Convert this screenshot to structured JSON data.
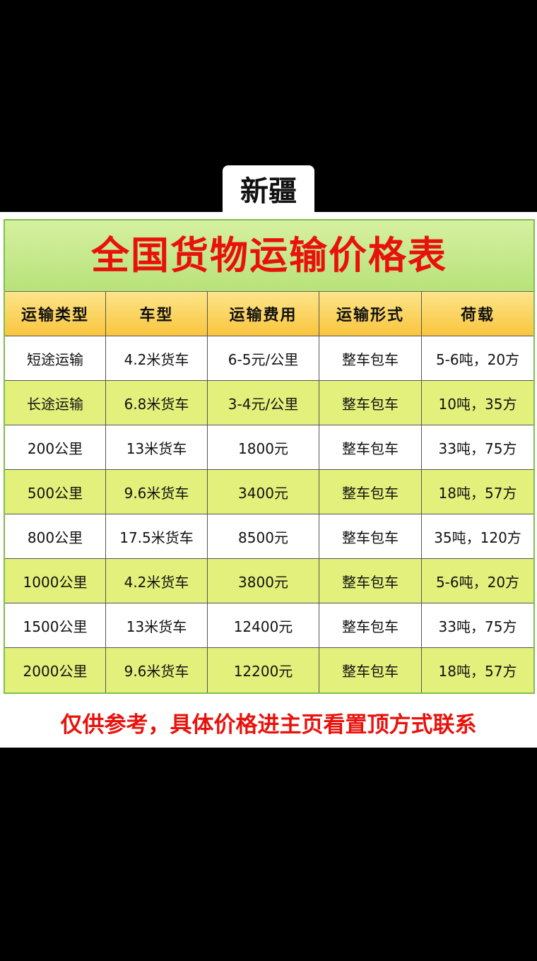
{
  "badge": "新疆",
  "title": "全国货物运输价格表",
  "table": {
    "header": [
      "运输类型",
      "车型",
      "运输费用",
      "运输形式",
      "荷载"
    ],
    "rows": [
      [
        "短途运输",
        "4.2米货车",
        "6-5元/公里",
        "整车包车",
        "5-6吨，20方"
      ],
      [
        "长途运输",
        "6.8米货车",
        "3-4元/公里",
        "整车包车",
        "10吨，35方"
      ],
      [
        "200公里",
        "13米货车",
        "1800元",
        "整车包车",
        "33吨，75方"
      ],
      [
        "500公里",
        "9.6米货车",
        "3400元",
        "整车包车",
        "18吨，57方"
      ],
      [
        "800公里",
        "17.5米货车",
        "8500元",
        "整车包车",
        "35吨，120方"
      ],
      [
        "1000公里",
        "4.2米货车",
        "3800元",
        "整车包车",
        "5-6吨，20方"
      ],
      [
        "1500公里",
        "13米货车",
        "12400元",
        "整车包车",
        "33吨，75方"
      ],
      [
        "2000公里",
        "9.6米货车",
        "12200元",
        "整车包车",
        "18吨，57方"
      ]
    ]
  },
  "footer": "仅供参考，具体价格进主页看置顶方式联系"
}
